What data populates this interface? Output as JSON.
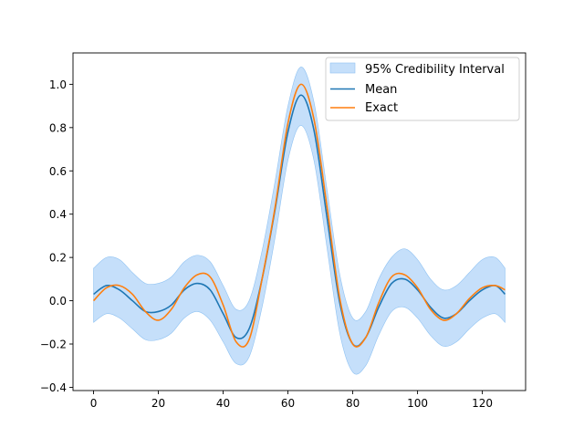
{
  "chart_data": {
    "type": "line",
    "title": "",
    "xlabel": "",
    "ylabel": "",
    "xlim": [
      -6.35,
      133.35
    ],
    "ylim": [
      -0.415,
      1.145
    ],
    "xticks": [
      0,
      20,
      40,
      60,
      80,
      100,
      120
    ],
    "yticks": [
      -0.4,
      -0.2,
      0.0,
      0.2,
      0.4,
      0.6,
      0.8,
      1.0
    ],
    "xtick_labels": [
      "0",
      "20",
      "40",
      "60",
      "80",
      "100",
      "120"
    ],
    "ytick_labels": [
      "−0.4",
      "−0.2",
      "0.0",
      "0.2",
      "0.4",
      "0.6",
      "0.8",
      "1.0"
    ],
    "grid": false,
    "legend_position": "top-right",
    "colors": {
      "band": "#a6cef7",
      "mean": "#1f77b4",
      "exact": "#ff7f0e",
      "band_edge": "#8fc2f2"
    },
    "series": [
      {
        "name": "Exact",
        "kind": "line",
        "x": [
          0,
          4,
          8,
          12,
          16,
          20,
          24,
          28,
          32,
          36,
          40,
          44,
          48,
          52,
          56,
          60,
          64,
          68,
          72,
          76,
          80,
          84,
          88,
          92,
          96,
          100,
          104,
          108,
          112,
          116,
          120,
          124,
          127
        ],
        "values": [
          0.0,
          0.06,
          0.07,
          0.03,
          -0.05,
          -0.09,
          -0.04,
          0.06,
          0.12,
          0.11,
          -0.02,
          -0.19,
          -0.18,
          0.1,
          0.43,
          0.82,
          1.0,
          0.84,
          0.44,
          0.01,
          -0.2,
          -0.17,
          -0.01,
          0.11,
          0.12,
          0.06,
          -0.04,
          -0.09,
          -0.06,
          0.01,
          0.06,
          0.07,
          0.05
        ]
      },
      {
        "name": "Mean",
        "kind": "line",
        "x": [
          0,
          4,
          8,
          12,
          16,
          20,
          24,
          28,
          32,
          36,
          40,
          44,
          48,
          52,
          56,
          60,
          64,
          68,
          72,
          76,
          80,
          84,
          88,
          92,
          96,
          100,
          104,
          108,
          112,
          116,
          120,
          124,
          127
        ],
        "values": [
          0.03,
          0.07,
          0.05,
          0.0,
          -0.05,
          -0.05,
          -0.02,
          0.05,
          0.08,
          0.05,
          -0.06,
          -0.17,
          -0.13,
          0.1,
          0.42,
          0.78,
          0.95,
          0.79,
          0.39,
          -0.01,
          -0.2,
          -0.17,
          -0.03,
          0.08,
          0.1,
          0.05,
          -0.03,
          -0.08,
          -0.06,
          0.0,
          0.05,
          0.07,
          0.03
        ]
      },
      {
        "name": "95% Credibility Interval",
        "kind": "band",
        "x": [
          0,
          4,
          8,
          12,
          16,
          20,
          24,
          28,
          32,
          36,
          40,
          44,
          48,
          52,
          56,
          60,
          64,
          68,
          72,
          76,
          80,
          84,
          88,
          92,
          96,
          100,
          104,
          108,
          112,
          116,
          120,
          124,
          127
        ],
        "upper": [
          0.15,
          0.2,
          0.19,
          0.13,
          0.08,
          0.08,
          0.11,
          0.18,
          0.21,
          0.18,
          0.07,
          -0.04,
          0.0,
          0.23,
          0.55,
          0.9,
          1.08,
          0.92,
          0.52,
          0.12,
          -0.08,
          -0.05,
          0.1,
          0.2,
          0.24,
          0.19,
          0.1,
          0.05,
          0.07,
          0.13,
          0.19,
          0.2,
          0.15
        ],
        "lower": [
          -0.1,
          -0.06,
          -0.08,
          -0.13,
          -0.18,
          -0.18,
          -0.15,
          -0.08,
          -0.05,
          -0.09,
          -0.19,
          -0.29,
          -0.26,
          -0.03,
          0.29,
          0.65,
          0.81,
          0.65,
          0.25,
          -0.15,
          -0.33,
          -0.3,
          -0.16,
          -0.05,
          -0.03,
          -0.08,
          -0.16,
          -0.21,
          -0.19,
          -0.13,
          -0.08,
          -0.06,
          -0.1
        ]
      }
    ]
  }
}
